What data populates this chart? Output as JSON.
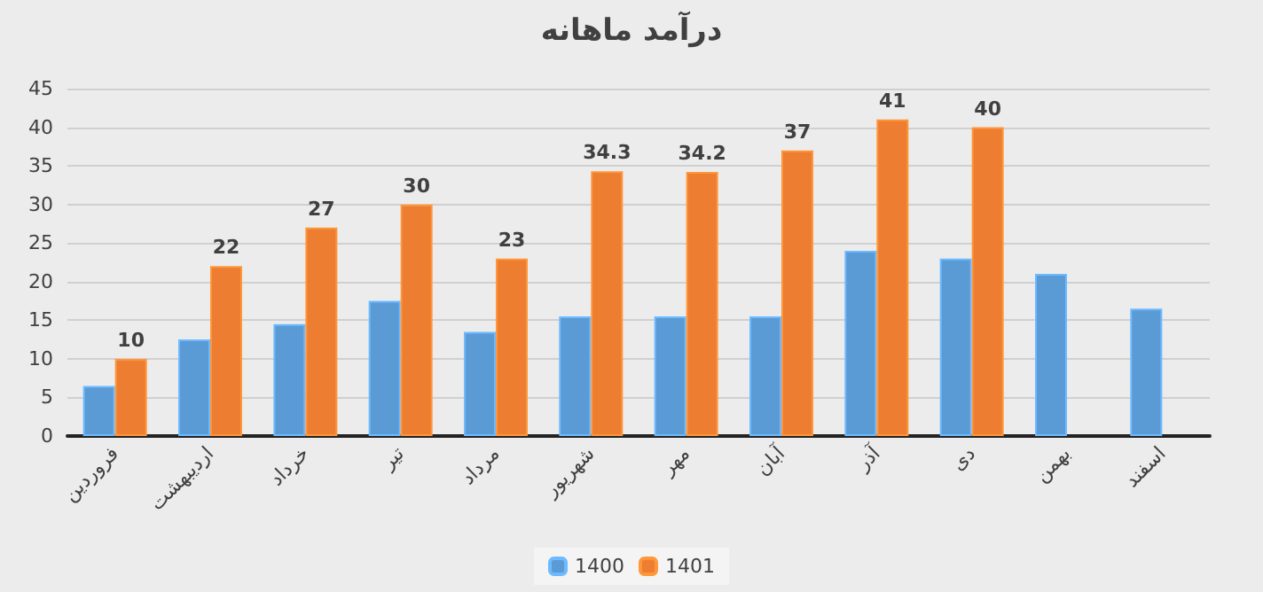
{
  "chart_data": {
    "type": "bar",
    "title": "درآمد ماهانه",
    "categories": [
      "فروردین",
      "اردیبهشت",
      "خرداد",
      "تیر",
      "مرداد",
      "شهریور",
      "مهر",
      "آبان",
      "آذر",
      "دی",
      "بهمن",
      "اسفند"
    ],
    "series": [
      {
        "name": "1400",
        "color": "#5b9bd5",
        "values": [
          6.5,
          12.5,
          14.5,
          17.5,
          13.5,
          15.5,
          15.5,
          15.5,
          24,
          23,
          21,
          16.5
        ]
      },
      {
        "name": "1401",
        "color": "#ed7d31",
        "values": [
          10,
          22,
          27,
          30,
          23,
          34.3,
          34.2,
          37,
          41,
          40,
          null,
          null
        ],
        "value_labels": [
          "10",
          "22",
          "27",
          "30",
          "23",
          "34.3",
          "34.2",
          "37",
          "41",
          "40",
          null,
          null
        ]
      }
    ],
    "ylim": [
      0,
      45
    ],
    "yticks": [
      0,
      5,
      10,
      15,
      20,
      25,
      30,
      35,
      40,
      45
    ],
    "grid": "y",
    "legend": "bottom"
  }
}
